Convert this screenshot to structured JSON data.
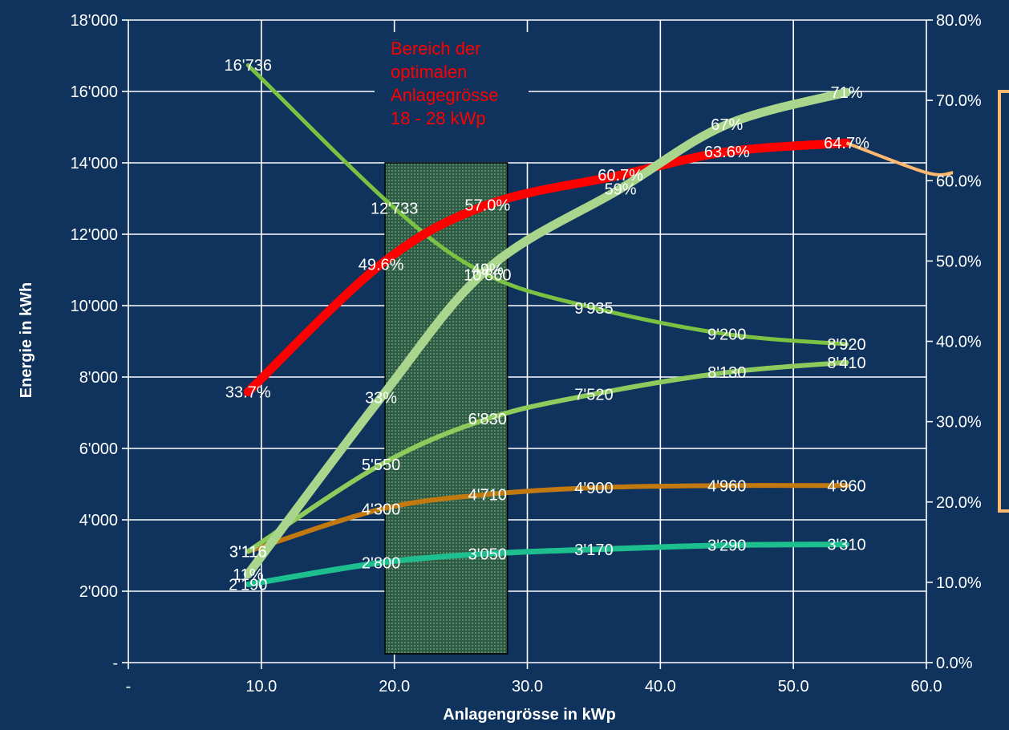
{
  "chart_data": {
    "type": "line",
    "xlabel": "Anlagengrösse in kWp",
    "ylabel": "Energie in kWh",
    "xlim": [
      0,
      60
    ],
    "ylim": [
      0,
      18000
    ],
    "y2lim": [
      0,
      80
    ],
    "grid": true,
    "x_ticks": [
      "-",
      "10.0",
      "20.0",
      "30.0",
      "40.0",
      "50.0",
      "60.0"
    ],
    "y_ticks": [
      "-",
      "2'000",
      "4'000",
      "6'000",
      "8'000",
      "10'000",
      "12'000",
      "14'000",
      "16'000",
      "18'000"
    ],
    "y2_ticks": [
      "0.0%",
      "10.0%",
      "20.0%",
      "30.0%",
      "40.0%",
      "50.0%",
      "60.0%",
      "70.0%",
      "80.0%"
    ],
    "annotation": {
      "lines": [
        "Bereich der",
        "optimalen",
        "Anlagegrösse",
        "18 - 28 kWp"
      ],
      "range": [
        19.3,
        28.5
      ]
    },
    "series": [
      {
        "axis": "left",
        "color": "#7cc242",
        "width": 5,
        "x": [
          9,
          20,
          27,
          35,
          45,
          54
        ],
        "y": [
          16736,
          12733,
          10860,
          9935,
          9200,
          8920
        ],
        "labels": [
          "16'736",
          "12'733",
          "10'860",
          "9'935",
          "9'200",
          "8'920"
        ]
      },
      {
        "axis": "left",
        "color": "#8fcb5c",
        "width": 6,
        "x": [
          9,
          19,
          27,
          35,
          45,
          54
        ],
        "y": [
          3116,
          5550,
          6830,
          7520,
          8130,
          8410
        ],
        "labels": [
          "3'116",
          "5'550",
          "6'830",
          "7'520",
          "8'130",
          "8'410"
        ]
      },
      {
        "axis": "left",
        "color": "#c27a10",
        "width": 6,
        "x": [
          9,
          19,
          27,
          35,
          45,
          54
        ],
        "y": [
          3116,
          4300,
          4710,
          4900,
          4960,
          4960
        ],
        "labels": [
          "3'116",
          "4'300",
          "4'710",
          "4'900",
          "4'960",
          "4'960"
        ]
      },
      {
        "axis": "left",
        "color": "#1dbf8e",
        "width": 7,
        "x": [
          9,
          19,
          27,
          35,
          45,
          54
        ],
        "y": [
          2190,
          2800,
          3050,
          3170,
          3290,
          3310
        ],
        "labels": [
          "2'190",
          "2'800",
          "3'050",
          "3'170",
          "3'290",
          "3'310"
        ]
      },
      {
        "axis": "right",
        "color": "#ff0000",
        "width": 11,
        "x": [
          9,
          19,
          27,
          37,
          45,
          54
        ],
        "y": [
          33.7,
          49.6,
          57.0,
          60.7,
          63.6,
          64.7
        ],
        "labels": [
          "33.7%",
          "49.6%",
          "57.0%",
          "60.7%",
          "63.6%",
          "64.7%"
        ]
      },
      {
        "axis": "right",
        "color": "#a9d68c",
        "width": 11,
        "x": [
          9,
          19,
          27,
          37,
          45,
          54
        ],
        "y": [
          11,
          33,
          49,
          59,
          67,
          71
        ],
        "labels": [
          "11%",
          "33%",
          "49%",
          "59%",
          "67%",
          "71%"
        ]
      }
    ],
    "extra_line": {
      "axis": "right",
      "color": "#ffb870",
      "width": 4,
      "x": [
        54,
        60,
        62
      ],
      "y": [
        64.7,
        61,
        61
      ]
    },
    "callout_box": {
      "border": "#ffb870",
      "fill": "#0f335c"
    }
  }
}
